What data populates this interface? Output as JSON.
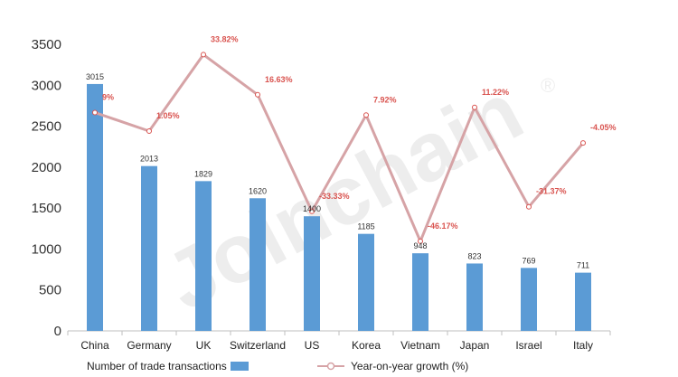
{
  "chart_data": {
    "type": "bar",
    "categories": [
      "China",
      "Germany",
      "UK",
      "Switzerland",
      "US",
      "Korea",
      "Vietnam",
      "Japan",
      "Israel",
      "Italy"
    ],
    "ylim": [
      0,
      3500
    ],
    "yticks": [
      "0",
      "500",
      "1000",
      "1500",
      "2000",
      "2500",
      "3000",
      "3500"
    ],
    "series": [
      {
        "name": "Number of trade transactions",
        "type": "bar",
        "color": "#5b9bd5",
        "values": [
          3015,
          2013,
          1829,
          1620,
          1400,
          1185,
          948,
          823,
          769,
          711
        ],
        "labels": [
          "3015",
          "2013",
          "1829",
          "1620",
          "1400",
          "1185",
          "948",
          "823",
          "769",
          "711"
        ]
      },
      {
        "name": "Year-on-year growth (%)",
        "type": "line",
        "color": "#d6a3a6",
        "axis": "secondary",
        "values": [
          9,
          1.05,
          33.82,
          16.63,
          -33.33,
          7.92,
          -46.17,
          11.22,
          -31.37,
          -4.05
        ],
        "labels": [
          "9%",
          "1.05%",
          "33.82%",
          "16.63%",
          "-33.33%",
          "7.92%",
          "-46.17%",
          "11.22%",
          "-31.37%",
          "-4.05%"
        ]
      }
    ],
    "watermark": "Joinchain",
    "watermark_mark": "®",
    "legend_position": "bottom"
  }
}
